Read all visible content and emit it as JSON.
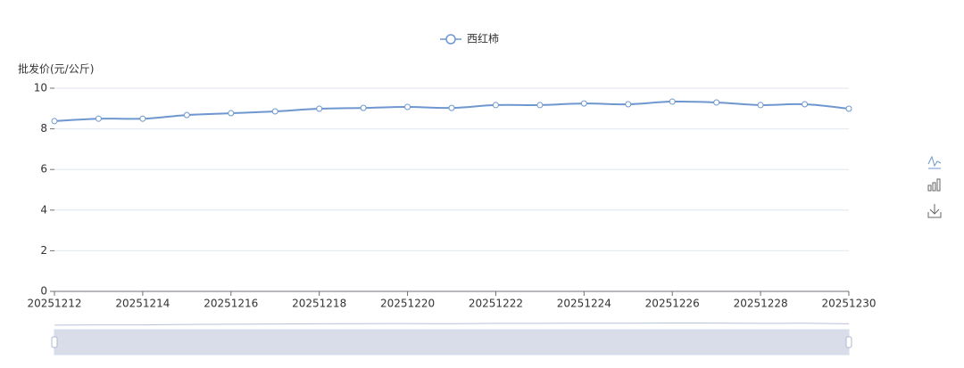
{
  "chart_data": {
    "type": "line",
    "y_axis_name": "批发价(元/公斤)",
    "categories": [
      "20251212",
      "20251213",
      "20251214",
      "20251215",
      "20251216",
      "20251217",
      "20251218",
      "20251219",
      "20251220",
      "20251221",
      "20251222",
      "20251223",
      "20251224",
      "20251225",
      "20251226",
      "20251227",
      "20251228",
      "20251229",
      "20251230"
    ],
    "label_interval": 2,
    "series": [
      {
        "name": "西红柿",
        "color": "#6e97cf",
        "values": [
          8.38,
          8.5,
          8.5,
          8.68,
          8.77,
          8.86,
          8.99,
          9.03,
          9.08,
          9.03,
          9.17,
          9.17,
          9.25,
          9.21,
          9.34,
          9.3,
          9.17,
          9.21,
          8.99
        ]
      }
    ],
    "ylim": [
      0,
      10
    ],
    "yticks": [
      0,
      2,
      4,
      6,
      8,
      10
    ],
    "grid": true,
    "smooth": true,
    "legend": "top"
  }
}
